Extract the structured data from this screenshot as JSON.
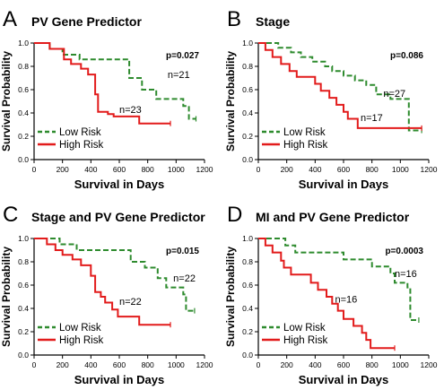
{
  "colors": {
    "low_risk": "#2e8b2e",
    "high_risk": "#e21b1b",
    "axis": "#000000"
  },
  "chart_data": [
    {
      "panel_letter": "A",
      "type": "line",
      "title": "PV Gene Predictor",
      "p_value": "p=0.027",
      "xlabel": "Survival in Days",
      "ylabel": "Survival Probability",
      "xlim": [
        0,
        1200
      ],
      "ylim": [
        0,
        1.0
      ],
      "xticks": [
        0,
        200,
        400,
        600,
        800,
        1000,
        1200
      ],
      "yticks": [
        0.0,
        0.2,
        0.4,
        0.6,
        0.8,
        1.0
      ],
      "ytick_labels": [
        "0.0",
        "0.2",
        "0.4",
        "0.6",
        "0.8",
        "1.0"
      ],
      "grid": false,
      "legend_position": "bottom-left",
      "series": [
        {
          "name": "Low Risk",
          "style": "dashed",
          "color": "#2e8b2e",
          "n_label": "n=21",
          "n_at": [
            940,
            0.7
          ],
          "steps": [
            [
              0,
              1.0
            ],
            [
              110,
              1.0
            ],
            [
              110,
              0.95
            ],
            [
              200,
              0.95
            ],
            [
              200,
              0.9
            ],
            [
              320,
              0.9
            ],
            [
              320,
              0.86
            ],
            [
              670,
              0.86
            ],
            [
              670,
              0.7
            ],
            [
              760,
              0.7
            ],
            [
              760,
              0.6
            ],
            [
              860,
              0.6
            ],
            [
              860,
              0.52
            ],
            [
              1050,
              0.52
            ],
            [
              1050,
              0.46
            ],
            [
              1090,
              0.46
            ],
            [
              1090,
              0.35
            ],
            [
              1140,
              0.35
            ]
          ]
        },
        {
          "name": "High Risk",
          "style": "solid",
          "color": "#e21b1b",
          "n_label": "n=23",
          "n_at": [
            600,
            0.4
          ],
          "steps": [
            [
              0,
              1.0
            ],
            [
              110,
              1.0
            ],
            [
              110,
              0.95
            ],
            [
              210,
              0.95
            ],
            [
              210,
              0.86
            ],
            [
              260,
              0.86
            ],
            [
              260,
              0.82
            ],
            [
              330,
              0.82
            ],
            [
              330,
              0.78
            ],
            [
              380,
              0.78
            ],
            [
              380,
              0.73
            ],
            [
              430,
              0.73
            ],
            [
              430,
              0.56
            ],
            [
              450,
              0.56
            ],
            [
              450,
              0.41
            ],
            [
              520,
              0.41
            ],
            [
              520,
              0.39
            ],
            [
              560,
              0.39
            ],
            [
              560,
              0.37
            ],
            [
              740,
              0.37
            ],
            [
              740,
              0.31
            ],
            [
              960,
              0.31
            ]
          ]
        }
      ]
    },
    {
      "panel_letter": "B",
      "type": "line",
      "title": "Stage",
      "p_value": "p=0.086",
      "xlabel": "Survival in  Days",
      "ylabel": "Survival Probability",
      "xlim": [
        0,
        1200
      ],
      "ylim": [
        0,
        1.0
      ],
      "xticks": [
        0,
        200,
        400,
        600,
        800,
        1000,
        1200
      ],
      "yticks": [
        0.0,
        0.2,
        0.4,
        0.6,
        0.8,
        1.0
      ],
      "ytick_labels": [
        "0.0",
        "0.2",
        "0.4",
        "0.6",
        "0.8",
        "1.0"
      ],
      "grid": false,
      "legend_position": "bottom-left",
      "series": [
        {
          "name": "Low Risk",
          "style": "dashed",
          "color": "#2e8b2e",
          "n_label": "n=27",
          "n_at": [
            880,
            0.54
          ],
          "steps": [
            [
              0,
              1.0
            ],
            [
              140,
              1.0
            ],
            [
              140,
              0.96
            ],
            [
              230,
              0.96
            ],
            [
              230,
              0.92
            ],
            [
              300,
              0.92
            ],
            [
              300,
              0.88
            ],
            [
              380,
              0.88
            ],
            [
              380,
              0.84
            ],
            [
              470,
              0.84
            ],
            [
              470,
              0.8
            ],
            [
              520,
              0.8
            ],
            [
              520,
              0.76
            ],
            [
              600,
              0.76
            ],
            [
              600,
              0.72
            ],
            [
              680,
              0.72
            ],
            [
              680,
              0.68
            ],
            [
              760,
              0.68
            ],
            [
              760,
              0.64
            ],
            [
              830,
              0.64
            ],
            [
              830,
              0.56
            ],
            [
              930,
              0.56
            ],
            [
              930,
              0.52
            ],
            [
              1060,
              0.52
            ],
            [
              1060,
              0.25
            ],
            [
              1150,
              0.25
            ]
          ]
        },
        {
          "name": "High Risk",
          "style": "solid",
          "color": "#e21b1b",
          "n_label": "n=17",
          "n_at": [
            720,
            0.33
          ],
          "steps": [
            [
              0,
              1.0
            ],
            [
              50,
              1.0
            ],
            [
              50,
              0.94
            ],
            [
              100,
              0.94
            ],
            [
              100,
              0.88
            ],
            [
              160,
              0.88
            ],
            [
              160,
              0.82
            ],
            [
              220,
              0.82
            ],
            [
              220,
              0.76
            ],
            [
              270,
              0.76
            ],
            [
              270,
              0.71
            ],
            [
              400,
              0.71
            ],
            [
              400,
              0.65
            ],
            [
              440,
              0.65
            ],
            [
              440,
              0.59
            ],
            [
              500,
              0.59
            ],
            [
              500,
              0.53
            ],
            [
              550,
              0.53
            ],
            [
              550,
              0.47
            ],
            [
              600,
              0.47
            ],
            [
              600,
              0.41
            ],
            [
              630,
              0.41
            ],
            [
              630,
              0.35
            ],
            [
              700,
              0.35
            ],
            [
              700,
              0.27
            ],
            [
              1150,
              0.27
            ]
          ]
        }
      ]
    },
    {
      "panel_letter": "C",
      "type": "line",
      "title": "Stage and PV Gene Predictor",
      "p_value": "p=0.015",
      "xlabel": "Survival in Days",
      "ylabel": "Survival Probability",
      "xlim": [
        0,
        1200
      ],
      "ylim": [
        0,
        1.0
      ],
      "xticks": [
        0,
        200,
        400,
        600,
        800,
        1000,
        1200
      ],
      "yticks": [
        0.0,
        0.2,
        0.4,
        0.6,
        0.8,
        1.0
      ],
      "ytick_labels": [
        "0.0",
        "0.2",
        "0.4",
        "0.6",
        "0.8",
        "1.0"
      ],
      "grid": false,
      "legend_position": "bottom-left",
      "series": [
        {
          "name": "Low Risk",
          "style": "dashed",
          "color": "#2e8b2e",
          "n_label": "n=22",
          "n_at": [
            980,
            0.63
          ],
          "steps": [
            [
              0,
              1.0
            ],
            [
              180,
              1.0
            ],
            [
              180,
              0.95
            ],
            [
              300,
              0.95
            ],
            [
              300,
              0.9
            ],
            [
              680,
              0.9
            ],
            [
              680,
              0.8
            ],
            [
              780,
              0.8
            ],
            [
              780,
              0.75
            ],
            [
              870,
              0.75
            ],
            [
              870,
              0.66
            ],
            [
              930,
              0.66
            ],
            [
              930,
              0.58
            ],
            [
              1050,
              0.58
            ],
            [
              1050,
              0.52
            ],
            [
              1070,
              0.52
            ],
            [
              1070,
              0.38
            ],
            [
              1130,
              0.38
            ]
          ]
        },
        {
          "name": "High Risk",
          "style": "solid",
          "color": "#e21b1b",
          "n_label": "n=22",
          "n_at": [
            600,
            0.43
          ],
          "steps": [
            [
              0,
              1.0
            ],
            [
              90,
              1.0
            ],
            [
              90,
              0.95
            ],
            [
              150,
              0.95
            ],
            [
              150,
              0.9
            ],
            [
              200,
              0.9
            ],
            [
              200,
              0.86
            ],
            [
              270,
              0.86
            ],
            [
              270,
              0.82
            ],
            [
              330,
              0.82
            ],
            [
              330,
              0.77
            ],
            [
              400,
              0.77
            ],
            [
              400,
              0.68
            ],
            [
              430,
              0.68
            ],
            [
              430,
              0.54
            ],
            [
              470,
              0.54
            ],
            [
              470,
              0.5
            ],
            [
              500,
              0.5
            ],
            [
              500,
              0.45
            ],
            [
              550,
              0.45
            ],
            [
              550,
              0.39
            ],
            [
              590,
              0.39
            ],
            [
              590,
              0.33
            ],
            [
              740,
              0.33
            ],
            [
              740,
              0.26
            ],
            [
              960,
              0.26
            ]
          ]
        }
      ]
    },
    {
      "panel_letter": "D",
      "type": "line",
      "title": "MI and PV Gene Predictor",
      "p_value": "p=0.0003",
      "xlabel": "Survival in Days",
      "ylabel": "Survival Probability",
      "xlim": [
        0,
        1200
      ],
      "ylim": [
        0,
        1.0
      ],
      "xticks": [
        0,
        200,
        400,
        600,
        800,
        1000,
        1200
      ],
      "yticks": [
        0.0,
        0.2,
        0.4,
        0.6,
        0.8,
        1.0
      ],
      "ytick_labels": [
        "0.0",
        "0.2",
        "0.4",
        "0.6",
        "0.8",
        "1.0"
      ],
      "grid": false,
      "legend_position": "bottom-left",
      "series": [
        {
          "name": "Low Risk",
          "style": "dashed",
          "color": "#2e8b2e",
          "n_label": "n=16",
          "n_at": [
            960,
            0.67
          ],
          "steps": [
            [
              0,
              1.0
            ],
            [
              190,
              1.0
            ],
            [
              190,
              0.94
            ],
            [
              260,
              0.94
            ],
            [
              260,
              0.88
            ],
            [
              600,
              0.88
            ],
            [
              600,
              0.82
            ],
            [
              800,
              0.82
            ],
            [
              800,
              0.76
            ],
            [
              930,
              0.76
            ],
            [
              930,
              0.7
            ],
            [
              960,
              0.7
            ],
            [
              960,
              0.62
            ],
            [
              1050,
              0.62
            ],
            [
              1050,
              0.58
            ],
            [
              1070,
              0.58
            ],
            [
              1070,
              0.3
            ],
            [
              1130,
              0.3
            ]
          ]
        },
        {
          "name": "High Risk",
          "style": "solid",
          "color": "#e21b1b",
          "n_label": "n=16",
          "n_at": [
            540,
            0.45
          ],
          "steps": [
            [
              0,
              1.0
            ],
            [
              50,
              1.0
            ],
            [
              50,
              0.94
            ],
            [
              100,
              0.94
            ],
            [
              100,
              0.88
            ],
            [
              160,
              0.88
            ],
            [
              160,
              0.81
            ],
            [
              180,
              0.81
            ],
            [
              180,
              0.75
            ],
            [
              230,
              0.75
            ],
            [
              230,
              0.69
            ],
            [
              370,
              0.69
            ],
            [
              370,
              0.62
            ],
            [
              420,
              0.62
            ],
            [
              420,
              0.56
            ],
            [
              480,
              0.56
            ],
            [
              480,
              0.5
            ],
            [
              520,
              0.5
            ],
            [
              520,
              0.44
            ],
            [
              560,
              0.44
            ],
            [
              560,
              0.38
            ],
            [
              600,
              0.38
            ],
            [
              600,
              0.31
            ],
            [
              670,
              0.31
            ],
            [
              670,
              0.25
            ],
            [
              730,
              0.25
            ],
            [
              730,
              0.19
            ],
            [
              760,
              0.19
            ],
            [
              760,
              0.13
            ],
            [
              790,
              0.13
            ],
            [
              790,
              0.06
            ],
            [
              960,
              0.06
            ]
          ]
        }
      ]
    }
  ]
}
